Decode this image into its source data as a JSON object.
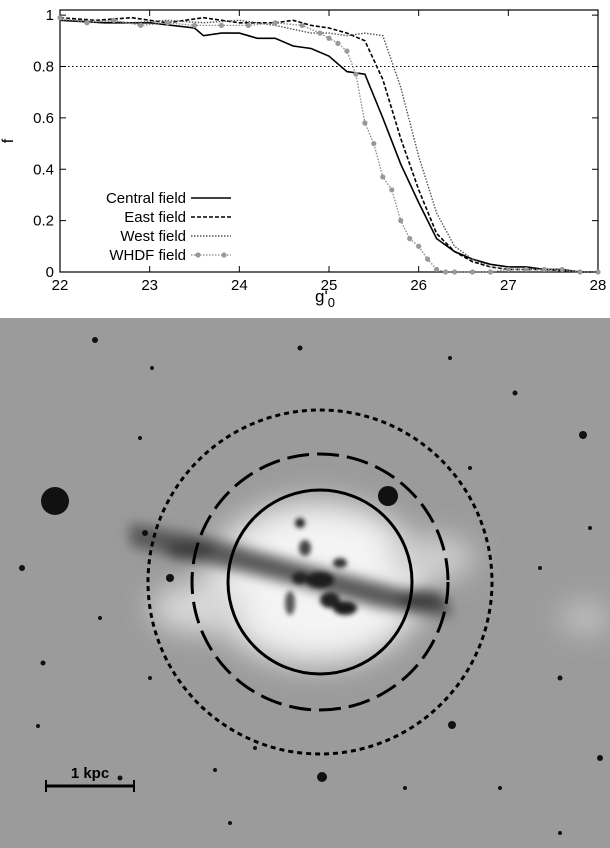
{
  "chart_data": {
    "type": "line",
    "xlabel": "g'",
    "xlabel_sub": "0",
    "ylabel": "f",
    "xlim": [
      22,
      28
    ],
    "ylim": [
      0,
      1.02
    ],
    "xticks": [
      "22",
      "23",
      "24",
      "25",
      "26",
      "27",
      "28"
    ],
    "yticks": [
      "0",
      "0.2",
      "0.4",
      "0.6",
      "0.8",
      "1"
    ],
    "xtick_values": [
      22,
      23,
      24,
      25,
      26,
      27,
      28
    ],
    "ytick_values": [
      0,
      0.2,
      0.4,
      0.6,
      0.8,
      1
    ],
    "reference_line": {
      "y": 0.8,
      "style": "dotted"
    },
    "grid": false,
    "legend_position": "bottom-left",
    "series": [
      {
        "name": "Central field",
        "style": "solid",
        "x": [
          22.0,
          22.5,
          23.0,
          23.5,
          23.6,
          23.8,
          24.0,
          24.2,
          24.4,
          24.6,
          24.8,
          25.0,
          25.2,
          25.4,
          25.6,
          25.8,
          26.0,
          26.2,
          26.4,
          26.6,
          26.8,
          27.0,
          27.2,
          27.4,
          27.6,
          27.8,
          28.0
        ],
        "y": [
          0.98,
          0.97,
          0.97,
          0.95,
          0.92,
          0.93,
          0.93,
          0.91,
          0.91,
          0.88,
          0.87,
          0.84,
          0.78,
          0.77,
          0.6,
          0.42,
          0.27,
          0.13,
          0.08,
          0.05,
          0.03,
          0.02,
          0.02,
          0.01,
          0.01,
          0.0,
          0.0
        ]
      },
      {
        "name": "East field",
        "style": "dashed",
        "x": [
          22.0,
          22.4,
          22.8,
          23.2,
          23.6,
          24.0,
          24.4,
          24.6,
          24.8,
          25.0,
          25.2,
          25.4,
          25.6,
          25.8,
          26.0,
          26.2,
          26.4,
          26.6,
          26.8,
          27.0,
          27.4,
          27.8,
          28.0
        ],
        "y": [
          0.99,
          0.98,
          0.99,
          0.97,
          0.99,
          0.97,
          0.97,
          0.98,
          0.96,
          0.95,
          0.93,
          0.9,
          0.75,
          0.52,
          0.32,
          0.15,
          0.08,
          0.04,
          0.02,
          0.01,
          0.01,
          0.0,
          0.0
        ]
      },
      {
        "name": "West field",
        "style": "dotted",
        "x": [
          22.0,
          22.4,
          22.8,
          23.2,
          23.6,
          24.0,
          24.4,
          24.8,
          25.0,
          25.2,
          25.4,
          25.6,
          25.8,
          26.0,
          26.2,
          26.4,
          26.6,
          26.8,
          27.0,
          27.4,
          27.8,
          28.0
        ],
        "y": [
          0.98,
          0.98,
          0.97,
          0.98,
          0.97,
          0.98,
          0.96,
          0.93,
          0.93,
          0.92,
          0.93,
          0.92,
          0.72,
          0.45,
          0.23,
          0.1,
          0.05,
          0.02,
          0.01,
          0.01,
          0.0,
          0.0
        ]
      },
      {
        "name": "WHDF field",
        "style": "dotted-markers",
        "x": [
          22.0,
          22.3,
          22.6,
          22.9,
          23.2,
          23.5,
          23.8,
          24.1,
          24.4,
          24.7,
          24.9,
          25.0,
          25.1,
          25.2,
          25.3,
          25.4,
          25.5,
          25.6,
          25.7,
          25.8,
          25.9,
          26.0,
          26.1,
          26.2,
          26.3,
          26.4,
          26.6,
          26.8,
          27.0,
          27.2,
          27.4,
          27.6,
          27.8,
          28.0
        ],
        "y": [
          0.99,
          0.97,
          0.98,
          0.96,
          0.97,
          0.96,
          0.96,
          0.96,
          0.97,
          0.96,
          0.93,
          0.91,
          0.89,
          0.86,
          0.77,
          0.58,
          0.5,
          0.37,
          0.32,
          0.2,
          0.13,
          0.1,
          0.05,
          0.01,
          0.0,
          0.0,
          0.0,
          0.0,
          0.01,
          0.01,
          0.01,
          0.01,
          0.0,
          0.0
        ]
      }
    ]
  },
  "image_panel": {
    "scale_bar_label": "1 kpc"
  }
}
